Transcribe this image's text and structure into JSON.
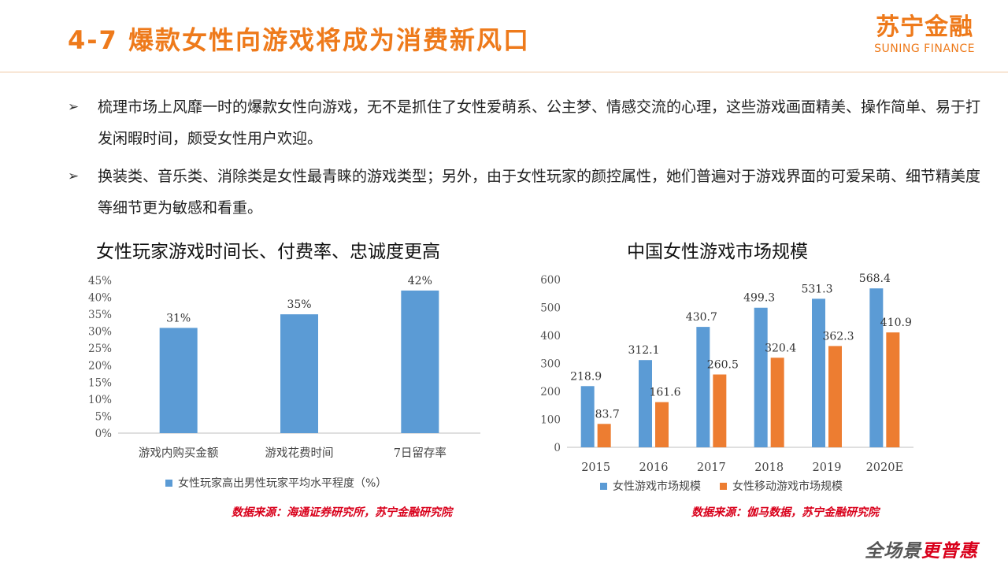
{
  "header": {
    "title": "4-7 爆款女性向游戏将成为消费新风口",
    "brand_cn": "苏宁金融",
    "brand_en": "SUNING FINANCE"
  },
  "bullets": [
    {
      "mark": "➢",
      "text": "梳理市场上风靡一时的爆款女性向游戏，无不是抓住了女性爱萌系、公主梦、情感交流的心理，这些游戏画面精美、操作简单、易于打发闲暇时间，颇受女性用户欢迎。"
    },
    {
      "mark": "➢",
      "text": "换装类、音乐类、消除类是女性最青睐的游戏类型；另外，由于女性玩家的颜控属性，她们普遍对于游戏界面的可爱呆萌、细节精美度等细节更为敏感和看重。"
    }
  ],
  "chart_data": [
    {
      "type": "bar",
      "title": "女性玩家游戏时间长、付费率、忠诚度更高",
      "categories": [
        "游戏内购买金额",
        "游戏花费时间",
        "7日留存率"
      ],
      "series": [
        {
          "name": "女性玩家高出男性玩家平均水平程度（%）",
          "values": [
            31,
            35,
            42
          ],
          "labels": [
            "31%",
            "35%",
            "42%"
          ],
          "color": "#5b9bd5"
        }
      ],
      "ylim": [
        0,
        45
      ],
      "yticks": [
        "0%",
        "5%",
        "10%",
        "15%",
        "20%",
        "25%",
        "30%",
        "35%",
        "40%",
        "45%"
      ],
      "legend": "bottom",
      "grid": false
    },
    {
      "type": "bar",
      "title": "中国女性游戏市场规模",
      "categories": [
        "2015",
        "2016",
        "2017",
        "2018",
        "2019",
        "2020E"
      ],
      "series": [
        {
          "name": "女性游戏市场规模",
          "values": [
            218.9,
            312.1,
            430.7,
            499.3,
            531.3,
            568.4
          ],
          "labels": [
            "218.9",
            "312.1",
            "430.7",
            "499.3",
            "531.3",
            "568.4"
          ],
          "color": "#5b9bd5"
        },
        {
          "name": "女性移动游戏市场规模",
          "values": [
            83.7,
            161.6,
            260.5,
            320.4,
            362.3,
            410.9
          ],
          "labels": [
            "83.7",
            "161.6",
            "260.5",
            "320.4",
            "362.3",
            "410.9"
          ],
          "color": "#ed7d31"
        }
      ],
      "ylim": [
        0,
        600
      ],
      "yticks": [
        "0",
        "100",
        "200",
        "300",
        "400",
        "500",
        "600"
      ],
      "legend": "bottom",
      "grid": false
    }
  ],
  "sources": [
    "数据来源：海通证券研究所，苏宁金融研究院",
    "数据来源：伽马数据，苏宁金融研究院"
  ],
  "footer": {
    "slogan_a": "全场景",
    "slogan_b": "更普惠"
  }
}
